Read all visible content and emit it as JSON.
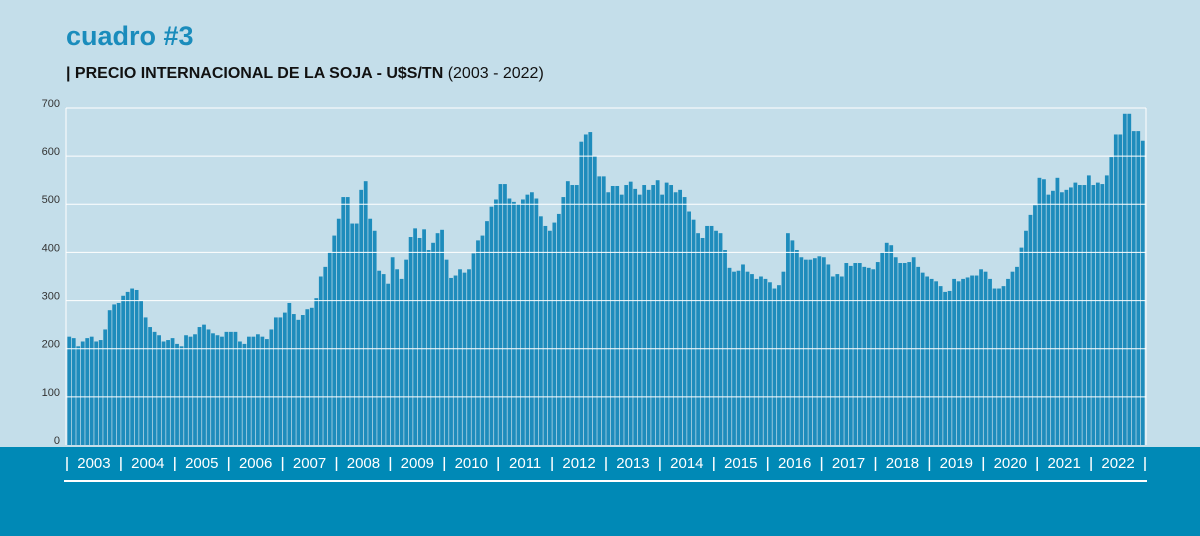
{
  "chart_data": {
    "type": "bar",
    "title": "cuadro #3",
    "subtitle": "| PRECIO INTERNACIONAL DE LA SOJA - U$S/TN",
    "subtitle_range": "(2003 - 2022)",
    "color": "#1e8cbc",
    "grid": true,
    "ylim": [
      0,
      700
    ],
    "yticks": [
      0,
      100,
      200,
      300,
      400,
      500,
      600,
      700
    ],
    "categories": [
      null,
      null,
      null,
      null,
      null,
      null,
      "2003",
      null,
      null,
      null,
      null,
      null,
      null,
      null,
      null,
      null,
      null,
      null,
      "2004",
      null,
      null,
      null,
      null,
      null,
      null,
      null,
      null,
      null,
      null,
      null,
      "2005",
      null,
      null,
      null,
      null,
      null,
      null,
      null,
      null,
      null,
      null,
      null,
      "2006",
      null,
      null,
      null,
      null,
      null,
      null,
      null,
      null,
      null,
      null,
      null,
      "2007",
      null,
      null,
      null,
      null,
      null,
      null,
      null,
      null,
      null,
      null,
      null,
      "2008",
      null,
      null,
      null,
      null,
      null,
      null,
      null,
      null,
      null,
      null,
      null,
      "2009",
      null,
      null,
      null,
      null,
      null,
      null,
      null,
      null,
      null,
      null,
      null,
      "2010",
      null,
      null,
      null,
      null,
      null,
      null,
      null,
      null,
      null,
      null,
      null,
      "2011",
      null,
      null,
      null,
      null,
      null,
      null,
      null,
      null,
      null,
      null,
      null,
      "2012",
      null,
      null,
      null,
      null,
      null,
      null,
      null,
      null,
      null,
      null,
      null,
      "2013",
      null,
      null,
      null,
      null,
      null,
      null,
      null,
      null,
      null,
      null,
      null,
      "2014",
      null,
      null,
      null,
      null,
      null,
      null,
      null,
      null,
      null,
      null,
      null,
      "2015",
      null,
      null,
      null,
      null,
      null,
      null,
      null,
      null,
      null,
      null,
      null,
      "2016",
      null,
      null,
      null,
      null,
      null,
      null,
      null,
      null,
      null,
      null,
      null,
      "2017",
      null,
      null,
      null,
      null,
      null,
      null,
      null,
      null,
      null,
      null,
      null,
      "2018",
      null,
      null,
      null,
      null,
      null,
      null,
      null,
      null,
      null,
      null,
      null,
      "2019",
      null,
      null,
      null,
      null,
      null,
      null,
      null,
      null,
      null,
      null,
      null,
      "2020",
      null,
      null,
      null,
      null,
      null,
      null,
      null,
      null,
      null,
      null,
      null,
      "2021",
      null,
      null,
      null,
      null,
      null,
      null,
      null,
      null,
      null,
      null,
      null,
      "2022",
      null,
      null,
      null,
      null,
      null
    ],
    "values": [
      225,
      222,
      205,
      215,
      222,
      225,
      215,
      218,
      240,
      280,
      292,
      295,
      310,
      318,
      325,
      322,
      300,
      265,
      245,
      235,
      228,
      215,
      218,
      222,
      210,
      205,
      228,
      225,
      230,
      245,
      250,
      240,
      232,
      228,
      225,
      235,
      235,
      235,
      215,
      210,
      225,
      225,
      230,
      225,
      220,
      240,
      265,
      265,
      275,
      295,
      272,
      260,
      270,
      282,
      285,
      305,
      350,
      370,
      400,
      435,
      470,
      515,
      515,
      460,
      460,
      530,
      548,
      470,
      445,
      362,
      355,
      335,
      390,
      365,
      345,
      385,
      432,
      450,
      430,
      448,
      405,
      420,
      440,
      447,
      385,
      347,
      352,
      365,
      358,
      365,
      398,
      425,
      435,
      465,
      495,
      510,
      542,
      542,
      512,
      505,
      500,
      510,
      520,
      525,
      512,
      475,
      455,
      445,
      462,
      480,
      515,
      548,
      540,
      540,
      630,
      645,
      650,
      600,
      558,
      558,
      525,
      538,
      538,
      520,
      540,
      547,
      532,
      520,
      540,
      530,
      540,
      550,
      520,
      545,
      540,
      525,
      530,
      515,
      485,
      468,
      440,
      430,
      455,
      455,
      445,
      440,
      405,
      368,
      360,
      362,
      375,
      360,
      355,
      345,
      350,
      345,
      338,
      325,
      332,
      360,
      440,
      425,
      405,
      390,
      385,
      385,
      388,
      392,
      390,
      375,
      350,
      355,
      350,
      378,
      372,
      378,
      378,
      370,
      368,
      365,
      380,
      400,
      420,
      415,
      390,
      378,
      378,
      380,
      390,
      370,
      358,
      350,
      345,
      340,
      330,
      318,
      320,
      345,
      340,
      345,
      348,
      352,
      352,
      365,
      360,
      345,
      325,
      325,
      330,
      345,
      360,
      370,
      410,
      445,
      478,
      498,
      555,
      552,
      520,
      528,
      555,
      525,
      530,
      535,
      545,
      540,
      540,
      560,
      540,
      545,
      542,
      560,
      598,
      645,
      645,
      688,
      688,
      652,
      652,
      632
    ]
  }
}
